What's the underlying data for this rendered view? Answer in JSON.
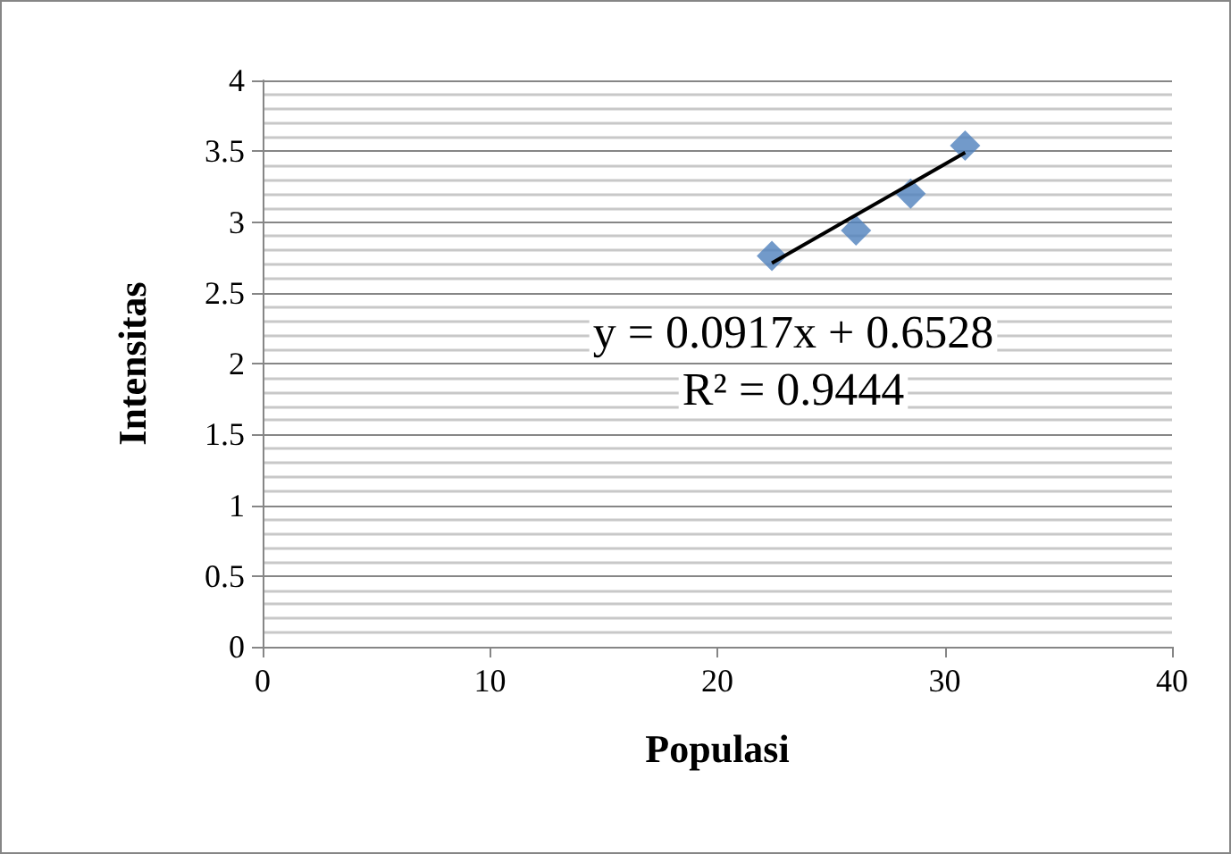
{
  "chart_data": {
    "type": "scatter",
    "xlabel": "Populasi",
    "ylabel": "Intensitas",
    "xlim": [
      0,
      40
    ],
    "xticks": [
      0,
      10,
      20,
      30,
      40
    ],
    "ylim": [
      0,
      4
    ],
    "yticks": [
      0,
      0.5,
      1,
      1.5,
      2,
      2.5,
      3,
      3.5,
      4
    ],
    "grid": "y",
    "legend": false,
    "marker": "diamond",
    "annotations": [
      "y = 0.0917x + 0.6528",
      "R² = 0.9444"
    ],
    "series": [
      {
        "color": "#4f81bd",
        "x": [
          22.4,
          26.1,
          28.5,
          30.9
        ],
        "values": [
          2.76,
          2.94,
          3.2,
          3.54
        ]
      },
      {
        "type": "line",
        "color": "#000000",
        "x": [
          22.4,
          30.9
        ],
        "values": [
          2.71,
          3.49
        ],
        "marker": "none"
      }
    ]
  }
}
